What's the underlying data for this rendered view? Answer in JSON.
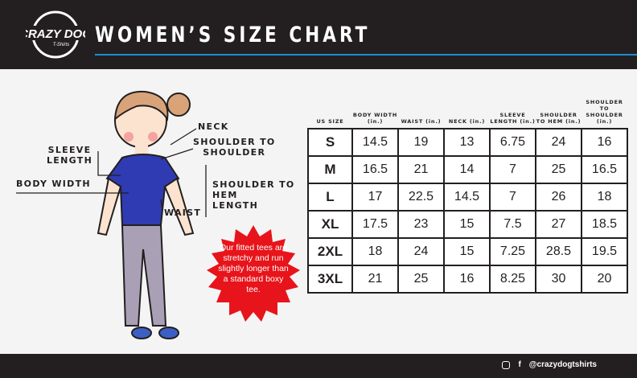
{
  "header": {
    "title": "WOMEN’S SIZE CHART",
    "logo_text": "CRAZY DOG T-Shirts",
    "accent": "#1c8fd6"
  },
  "labels": {
    "neck": "NECK",
    "shoulder_to_shoulder": "SHOULDER TO\nSHOULDER",
    "sleeve_length": "SLEEVE\nLENGTH",
    "body_width": "BODY WIDTH",
    "shoulder_to_hem": "SHOULDER TO\nHEM\nLENGTH",
    "waist": "WAIST"
  },
  "note": "Our fitted tees are stretchy and run slightly longer than a standard boxy tee.",
  "table": {
    "headers": [
      "US SIZE",
      "BODY WIDTH (in.)",
      "WAIST (in.)",
      "NECK (in.)",
      "SLEEVE LENGTH (in.)",
      "SHOULDER TO HEM (in.)",
      "SHOULDER TO SHOULDER (in.)"
    ],
    "rows": [
      [
        "S",
        "14.5",
        "19",
        "13",
        "6.75",
        "24",
        "16"
      ],
      [
        "M",
        "16.5",
        "21",
        "14",
        "7",
        "25",
        "16.5"
      ],
      [
        "L",
        "17",
        "22.5",
        "14.5",
        "7",
        "26",
        "18"
      ],
      [
        "XL",
        "17.5",
        "23",
        "15",
        "7.5",
        "27",
        "18.5"
      ],
      [
        "2XL",
        "18",
        "24",
        "15",
        "7.25",
        "28.5",
        "19.5"
      ],
      [
        "3XL",
        "21",
        "25",
        "16",
        "8.25",
        "30",
        "20"
      ]
    ]
  },
  "footer": {
    "handle": "@crazydogtshirts",
    "icons": [
      "instagram-icon",
      "facebook-icon"
    ]
  }
}
